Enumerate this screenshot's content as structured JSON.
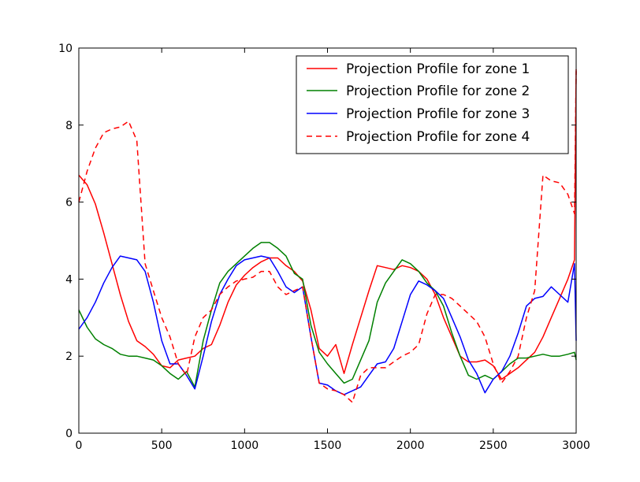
{
  "chart_data": {
    "type": "line",
    "title": "",
    "xlabel": "",
    "ylabel": "",
    "xlim": [
      0,
      3000
    ],
    "ylim": [
      0,
      10
    ],
    "xticks": [
      0,
      500,
      1000,
      1500,
      2000,
      2500,
      3000
    ],
    "yticks": [
      0,
      2,
      4,
      6,
      8,
      10
    ],
    "grid": false,
    "legend_position": "top-right",
    "series": [
      {
        "name": "Projection Profile for zone 1",
        "color": "#ff0000",
        "dash": "solid",
        "x": [
          0,
          50,
          100,
          150,
          200,
          250,
          300,
          350,
          400,
          450,
          500,
          550,
          600,
          650,
          700,
          750,
          800,
          850,
          900,
          950,
          1000,
          1050,
          1100,
          1150,
          1200,
          1250,
          1300,
          1350,
          1400,
          1450,
          1500,
          1550,
          1600,
          1650,
          1700,
          1750,
          1800,
          1850,
          1900,
          1950,
          2000,
          2050,
          2100,
          2150,
          2200,
          2250,
          2300,
          2350,
          2400,
          2450,
          2500,
          2550,
          2600,
          2650,
          2700,
          2750,
          2800,
          2850,
          2900,
          2950,
          2990,
          3000
        ],
        "y": [
          6.7,
          6.45,
          5.95,
          5.2,
          4.4,
          3.6,
          2.9,
          2.4,
          2.25,
          2.05,
          1.75,
          1.7,
          1.9,
          1.95,
          2.0,
          2.2,
          2.3,
          2.8,
          3.4,
          3.85,
          4.1,
          4.3,
          4.45,
          4.55,
          4.55,
          4.35,
          4.2,
          3.95,
          3.2,
          2.2,
          2.0,
          2.3,
          1.55,
          2.3,
          3.0,
          3.7,
          4.35,
          4.3,
          4.25,
          4.35,
          4.3,
          4.2,
          4.0,
          3.6,
          3.0,
          2.5,
          2.0,
          1.85,
          1.85,
          1.9,
          1.75,
          1.4,
          1.55,
          1.7,
          1.9,
          2.1,
          2.5,
          3.0,
          3.5,
          4.0,
          4.5,
          9.45
        ]
      },
      {
        "name": "Projection Profile for zone 2",
        "color": "#008000",
        "dash": "solid",
        "x": [
          0,
          50,
          100,
          150,
          200,
          250,
          300,
          350,
          400,
          450,
          500,
          550,
          600,
          650,
          700,
          750,
          800,
          850,
          900,
          950,
          1000,
          1050,
          1100,
          1150,
          1200,
          1250,
          1300,
          1350,
          1400,
          1450,
          1500,
          1550,
          1600,
          1650,
          1700,
          1750,
          1800,
          1850,
          1900,
          1950,
          2000,
          2050,
          2100,
          2150,
          2200,
          2250,
          2300,
          2350,
          2400,
          2450,
          2500,
          2550,
          2600,
          2650,
          2700,
          2750,
          2800,
          2850,
          2900,
          2950,
          2990,
          3000
        ],
        "y": [
          3.2,
          2.75,
          2.45,
          2.3,
          2.2,
          2.05,
          2.0,
          2.0,
          1.95,
          1.9,
          1.75,
          1.55,
          1.4,
          1.6,
          1.2,
          2.4,
          3.2,
          3.9,
          4.2,
          4.4,
          4.6,
          4.8,
          4.95,
          4.95,
          4.8,
          4.6,
          4.15,
          4.0,
          2.8,
          2.1,
          1.8,
          1.55,
          1.3,
          1.4,
          1.9,
          2.4,
          3.4,
          3.9,
          4.2,
          4.5,
          4.4,
          4.2,
          3.9,
          3.7,
          3.3,
          2.6,
          2.0,
          1.5,
          1.4,
          1.5,
          1.4,
          1.6,
          1.8,
          1.95,
          1.95,
          2.0,
          2.05,
          2.0,
          2.0,
          2.05,
          2.1,
          1.9
        ]
      },
      {
        "name": "Projection Profile for zone 3",
        "color": "#0000ff",
        "dash": "solid",
        "x": [
          0,
          50,
          100,
          150,
          200,
          250,
          300,
          350,
          400,
          450,
          500,
          550,
          600,
          650,
          700,
          750,
          800,
          850,
          900,
          950,
          1000,
          1050,
          1100,
          1150,
          1200,
          1250,
          1300,
          1350,
          1400,
          1450,
          1500,
          1550,
          1600,
          1650,
          1700,
          1750,
          1800,
          1850,
          1900,
          1950,
          2000,
          2050,
          2100,
          2150,
          2200,
          2250,
          2300,
          2350,
          2400,
          2450,
          2500,
          2550,
          2600,
          2650,
          2700,
          2750,
          2800,
          2850,
          2900,
          2950,
          2990,
          3000
        ],
        "y": [
          2.7,
          3.0,
          3.4,
          3.9,
          4.3,
          4.6,
          4.55,
          4.5,
          4.2,
          3.4,
          2.4,
          1.8,
          1.8,
          1.5,
          1.15,
          2.0,
          2.9,
          3.6,
          4.0,
          4.35,
          4.5,
          4.55,
          4.6,
          4.55,
          4.2,
          3.8,
          3.65,
          3.8,
          2.5,
          1.3,
          1.25,
          1.1,
          1.0,
          1.1,
          1.2,
          1.5,
          1.8,
          1.85,
          2.2,
          2.9,
          3.6,
          3.95,
          3.85,
          3.7,
          3.5,
          3.0,
          2.5,
          1.9,
          1.55,
          1.05,
          1.4,
          1.6,
          2.0,
          2.6,
          3.3,
          3.5,
          3.55,
          3.8,
          3.6,
          3.4,
          4.4,
          2.4
        ]
      },
      {
        "name": "Projection Profile for zone 4",
        "color": "#ff0000",
        "dash": "dashed",
        "x": [
          0,
          50,
          100,
          150,
          200,
          250,
          300,
          350,
          400,
          450,
          500,
          550,
          600,
          650,
          700,
          750,
          800,
          850,
          900,
          950,
          1000,
          1050,
          1100,
          1150,
          1200,
          1250,
          1300,
          1350,
          1400,
          1450,
          1500,
          1550,
          1600,
          1650,
          1700,
          1750,
          1800,
          1850,
          1900,
          1950,
          2000,
          2050,
          2100,
          2150,
          2200,
          2250,
          2300,
          2350,
          2400,
          2450,
          2500,
          2550,
          2600,
          2650,
          2700,
          2750,
          2800,
          2850,
          2900,
          2950,
          2990,
          3000
        ],
        "y": [
          6.0,
          6.8,
          7.4,
          7.8,
          7.9,
          7.95,
          8.1,
          7.6,
          4.4,
          3.7,
          3.0,
          2.5,
          1.8,
          1.5,
          2.5,
          3.0,
          3.2,
          3.6,
          3.8,
          3.95,
          4.0,
          4.05,
          4.2,
          4.2,
          3.8,
          3.6,
          3.7,
          3.8,
          2.5,
          1.3,
          1.15,
          1.1,
          1.0,
          0.8,
          1.5,
          1.7,
          1.7,
          1.7,
          1.85,
          2.0,
          2.1,
          2.3,
          3.1,
          3.6,
          3.6,
          3.5,
          3.3,
          3.1,
          2.9,
          2.5,
          1.8,
          1.3,
          1.6,
          2.0,
          3.0,
          3.7,
          6.7,
          6.55,
          6.5,
          6.2,
          5.7,
          9.4
        ]
      }
    ]
  }
}
